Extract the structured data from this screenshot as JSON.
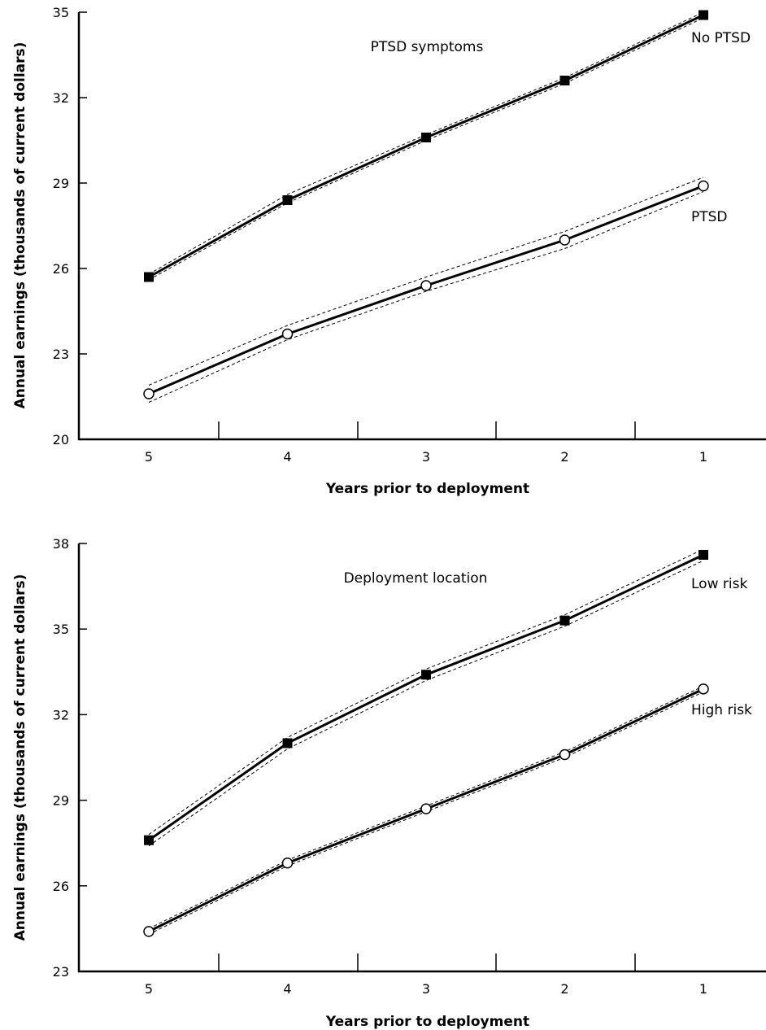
{
  "chart_data": [
    {
      "type": "line",
      "title": "PTSD symptoms",
      "xlabel": "Years prior to deployment",
      "ylabel": "Annual earnings (thousands of current dollars)",
      "categories": [
        "5",
        "4",
        "3",
        "2",
        "1"
      ],
      "ylim": [
        20,
        35
      ],
      "yticks": [
        20,
        23,
        26,
        29,
        32,
        35
      ],
      "grid": false,
      "legend": "none",
      "series": [
        {
          "name": "No PTSD",
          "marker": "filled-square",
          "values": [
            25.7,
            28.4,
            30.6,
            32.6,
            34.9
          ],
          "ci_lower": [
            25.6,
            28.3,
            30.5,
            32.5,
            34.8
          ],
          "ci_upper": [
            25.8,
            28.6,
            30.7,
            32.7,
            35.0
          ]
        },
        {
          "name": "PTSD",
          "marker": "open-circle",
          "values": [
            21.6,
            23.7,
            25.4,
            27.0,
            28.9
          ],
          "ci_lower": [
            21.3,
            23.5,
            25.2,
            26.7,
            28.7
          ],
          "ci_upper": [
            21.9,
            24.0,
            25.7,
            27.3,
            29.2
          ]
        }
      ]
    },
    {
      "type": "line",
      "title": "Deployment location",
      "xlabel": "Years prior to deployment",
      "ylabel": "Annual earnings (thousands of current dollars)",
      "categories": [
        "5",
        "4",
        "3",
        "2",
        "1"
      ],
      "ylim": [
        23,
        38
      ],
      "yticks": [
        23,
        26,
        29,
        32,
        35,
        38
      ],
      "grid": false,
      "legend": "none",
      "series": [
        {
          "name": "Low risk",
          "marker": "filled-square",
          "values": [
            27.6,
            31.0,
            33.4,
            35.3,
            37.6
          ],
          "ci_lower": [
            27.4,
            30.8,
            33.2,
            35.1,
            37.4
          ],
          "ci_upper": [
            27.8,
            31.2,
            33.6,
            35.5,
            37.8
          ]
        },
        {
          "name": "High risk",
          "marker": "open-circle",
          "values": [
            24.4,
            26.8,
            28.7,
            30.6,
            32.9
          ],
          "ci_lower": [
            24.3,
            26.7,
            28.6,
            30.5,
            32.8
          ],
          "ci_upper": [
            24.5,
            26.9,
            28.8,
            30.7,
            33.0
          ]
        }
      ]
    }
  ]
}
